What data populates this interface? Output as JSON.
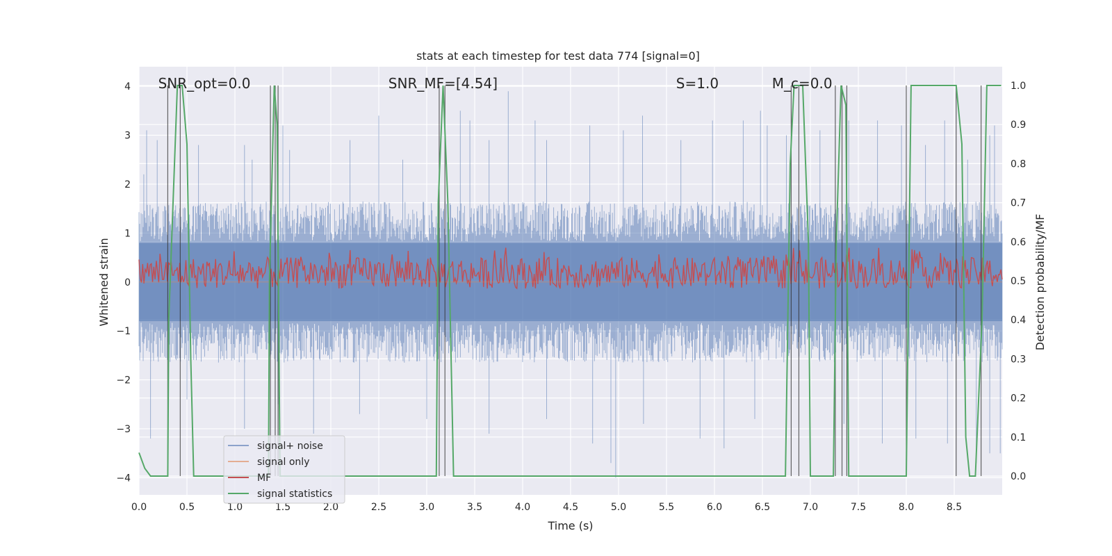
{
  "chart_data": {
    "type": "line",
    "title": "stats at each timestep for test data 774 [signal=0]",
    "xlabel": "Time (s)",
    "ylabel": "Whitened strain",
    "ylabel_right": "Detection probability/MF",
    "xlim": [
      0.0,
      9.0
    ],
    "ylim": [
      -4.35,
      4.4
    ],
    "ylim_right": [
      -0.048,
      1.048
    ],
    "x_ticks": [
      "0.0",
      "0.5",
      "1.0",
      "1.5",
      "2.0",
      "2.5",
      "3.0",
      "3.5",
      "4.0",
      "4.5",
      "5.0",
      "5.5",
      "6.0",
      "6.5",
      "7.0",
      "7.5",
      "8.0",
      "8.5"
    ],
    "x_tick_values": [
      0.0,
      0.5,
      1.0,
      1.5,
      2.0,
      2.5,
      3.0,
      3.5,
      4.0,
      4.5,
      5.0,
      5.5,
      6.0,
      6.5,
      7.0,
      7.5,
      8.0,
      8.5
    ],
    "y_ticks": [
      "−4",
      "−3",
      "−2",
      "−1",
      "0",
      "1",
      "2",
      "3",
      "4"
    ],
    "y_tick_values": [
      -4,
      -3,
      -2,
      -1,
      0,
      1,
      2,
      3,
      4
    ],
    "y_ticks_right": [
      "0.0",
      "0.1",
      "0.2",
      "0.3",
      "0.4",
      "0.5",
      "0.6",
      "0.7",
      "0.8",
      "0.9",
      "1.0"
    ],
    "y_tick_values_right": [
      0.0,
      0.1,
      0.2,
      0.3,
      0.4,
      0.5,
      0.6,
      0.7,
      0.8,
      0.9,
      1.0
    ],
    "grid": true,
    "legend_position": "lower-left",
    "annotations": [
      {
        "id": "snr-opt",
        "text": "SNR_opt=0.0",
        "x": 0.2
      },
      {
        "id": "snr-mf",
        "text": "SNR_MF=[4.54]",
        "x": 2.6
      },
      {
        "id": "s",
        "text": "S=1.0",
        "x": 5.6
      },
      {
        "id": "mc",
        "text": "M_c=0.0",
        "x": 6.6
      }
    ],
    "series": [
      {
        "name": "signal+ noise",
        "color": "#4c72b0",
        "kind": "noise",
        "amplitude_typical": 1.5,
        "amplitude_peak": 3.9,
        "peaks": [
          [
            0.05,
            2.2
          ],
          [
            0.08,
            3.1
          ],
          [
            0.19,
            2.9
          ],
          [
            0.62,
            2.8
          ],
          [
            1.1,
            2.8
          ],
          [
            1.18,
            2.5
          ],
          [
            1.5,
            3.2
          ],
          [
            1.57,
            2.7
          ],
          [
            2.2,
            2.9
          ],
          [
            2.5,
            3.4
          ],
          [
            2.75,
            2.5
          ],
          [
            3.35,
            3.5
          ],
          [
            3.45,
            3.3
          ],
          [
            3.65,
            2.9
          ],
          [
            3.85,
            3.9
          ],
          [
            4.13,
            3.3
          ],
          [
            4.25,
            2.9
          ],
          [
            4.7,
            3.2
          ],
          [
            5.05,
            3.1
          ],
          [
            5.25,
            3.4
          ],
          [
            5.65,
            2.9
          ],
          [
            5.98,
            3.3
          ],
          [
            6.3,
            3.3
          ],
          [
            6.48,
            3.5
          ],
          [
            6.55,
            3.2
          ],
          [
            6.75,
            3.0
          ],
          [
            7.1,
            3.1
          ],
          [
            7.4,
            3.3
          ],
          [
            7.7,
            3.3
          ],
          [
            7.95,
            3.2
          ],
          [
            8.2,
            2.8
          ],
          [
            8.4,
            3.3
          ],
          [
            8.64,
            2.5
          ],
          [
            8.87,
            3.0
          ],
          [
            8.92,
            3.2
          ],
          [
            0.12,
            -3.2
          ],
          [
            0.5,
            -2.4
          ],
          [
            1.1,
            -3.0
          ],
          [
            1.45,
            -2.5
          ],
          [
            1.82,
            -3.1
          ],
          [
            2.3,
            -2.7
          ],
          [
            3.0,
            -2.8
          ],
          [
            3.65,
            -3.1
          ],
          [
            4.25,
            -2.8
          ],
          [
            4.73,
            -3.3
          ],
          [
            4.92,
            -3.7
          ],
          [
            4.97,
            -4.0
          ],
          [
            5.26,
            -2.9
          ],
          [
            5.85,
            -3.2
          ],
          [
            6.1,
            -3.4
          ],
          [
            6.42,
            -2.8
          ],
          [
            7.35,
            -2.9
          ],
          [
            7.75,
            -3.3
          ],
          [
            8.1,
            -3.2
          ],
          [
            8.43,
            -3.3
          ],
          [
            8.73,
            -3.7
          ],
          [
            8.87,
            -3.5
          ],
          [
            8.98,
            -3.5
          ]
        ]
      },
      {
        "name": "signal only",
        "color": "#dd8452",
        "kind": "flat",
        "value": 0.0
      },
      {
        "name": "MF",
        "color": "#c44e52",
        "kind": "mf",
        "base_right": 0.52,
        "noise_right": 0.04,
        "max_right": 0.585
      },
      {
        "name": "signal statistics",
        "color": "#55a868",
        "kind": "step",
        "x": [
          0.0,
          0.06,
          0.12,
          0.3,
          0.31,
          0.4,
          0.45,
          0.5,
          0.54,
          0.57,
          0.6,
          1.35,
          1.36,
          1.41,
          1.44,
          1.47,
          1.5,
          3.1,
          3.12,
          3.17,
          3.22,
          3.28,
          3.31,
          6.74,
          6.79,
          6.83,
          6.92,
          6.98,
          7.0,
          7.24,
          7.27,
          7.32,
          7.37,
          7.4,
          8.0,
          8.05,
          8.52,
          8.58,
          8.62,
          8.66,
          8.72,
          8.79,
          8.84,
          8.99
        ],
        "y": [
          0.06,
          0.02,
          0.0,
          0.0,
          0.4,
          1.0,
          1.0,
          0.85,
          0.3,
          0.0,
          0.0,
          0.0,
          0.5,
          1.0,
          0.9,
          0.0,
          0.0,
          0.0,
          0.7,
          1.0,
          0.7,
          0.0,
          0.0,
          0.0,
          0.8,
          1.0,
          1.0,
          0.6,
          0.0,
          0.0,
          0.6,
          1.0,
          0.95,
          0.0,
          0.0,
          1.0,
          1.0,
          0.85,
          0.1,
          0.0,
          0.0,
          0.4,
          1.0,
          1.0
        ]
      }
    ],
    "vlines": [
      0.3,
      0.43,
      1.37,
      1.42,
      1.45,
      3.13,
      3.19,
      6.8,
      6.88,
      7.26,
      7.33,
      7.38,
      8.0,
      8.52,
      8.78
    ]
  }
}
